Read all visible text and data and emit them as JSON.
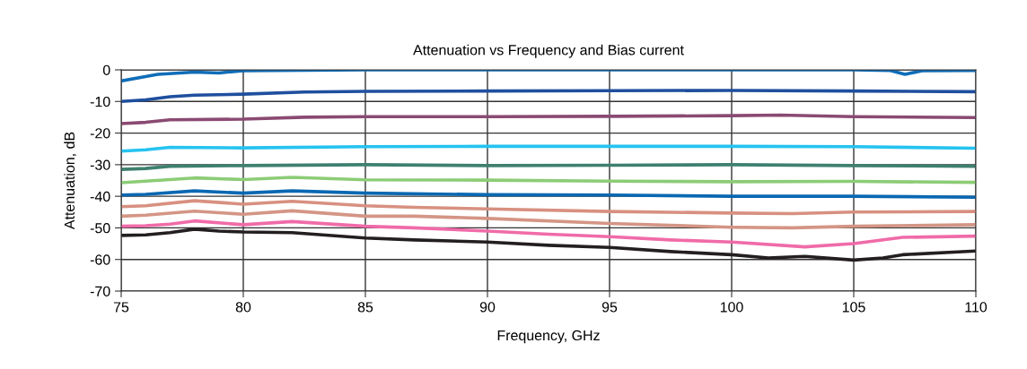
{
  "chart_data": {
    "type": "line",
    "title": "Attenuation vs Frequency and Bias current",
    "xlabel": "Frequency, GHz",
    "ylabel": "Attenuation, dB",
    "xlim": [
      75,
      110
    ],
    "xticks": [
      75,
      80,
      85,
      90,
      95,
      100,
      105,
      110
    ],
    "ylim": [
      -70,
      0
    ],
    "yticks": [
      -70,
      -60,
      -50,
      -40,
      -30,
      -20,
      -10,
      0
    ],
    "grid": true,
    "marker": "none",
    "line_style": "solid",
    "series": [
      {
        "color": "#0f6db8",
        "x": [
          75,
          76.5,
          78,
          79,
          79.5,
          80,
          85,
          90,
          95,
          100,
          105,
          106.5,
          107.1,
          107.8,
          110
        ],
        "values": [
          -3.5,
          -1.4,
          -0.7,
          -1,
          -0.6,
          -0.3,
          0,
          0,
          0,
          0,
          0,
          -0.2,
          -1.4,
          -0.3,
          -0.2
        ]
      },
      {
        "color": "#1f4f9e",
        "x": [
          75,
          76,
          77,
          78,
          80,
          82.5,
          85,
          90,
          95,
          100,
          105,
          110
        ],
        "values": [
          -10,
          -9.5,
          -8.5,
          -8,
          -7.7,
          -7,
          -6.8,
          -6.7,
          -6.6,
          -6.5,
          -6.7,
          -6.9
        ]
      },
      {
        "color": "#8a4a72",
        "x": [
          75,
          76,
          77,
          80,
          82.5,
          85,
          90,
          95,
          100,
          102,
          105,
          110
        ],
        "values": [
          -17,
          -16.6,
          -15.8,
          -15.6,
          -15,
          -14.8,
          -14.8,
          -14.7,
          -14.5,
          -14.3,
          -14.8,
          -15.1
        ]
      },
      {
        "color": "#25c3f0",
        "x": [
          75,
          76,
          77,
          80,
          85,
          90,
          95,
          100,
          105,
          110
        ],
        "values": [
          -25.7,
          -25.3,
          -24.5,
          -24.7,
          -24.3,
          -24.2,
          -24.2,
          -24.2,
          -24.3,
          -24.8
        ]
      },
      {
        "color": "#3e8070",
        "x": [
          75,
          76,
          77,
          80,
          85,
          90,
          95,
          100,
          105,
          110
        ],
        "values": [
          -31.5,
          -31.2,
          -30.5,
          -30.3,
          -30,
          -30.3,
          -30.2,
          -30,
          -30.3,
          -30.5
        ]
      },
      {
        "color": "#8ccc76",
        "x": [
          75,
          76,
          78,
          80,
          82,
          85,
          90,
          95,
          100,
          105,
          110
        ],
        "values": [
          -35.7,
          -35.2,
          -34.2,
          -34.7,
          -34,
          -34.8,
          -34.9,
          -35.2,
          -35.4,
          -35.3,
          -35.6
        ]
      },
      {
        "color": "#0a68b2",
        "x": [
          75,
          76,
          78,
          80,
          82,
          85,
          90,
          95,
          100,
          105,
          110
        ],
        "values": [
          -39.6,
          -39.4,
          -38.3,
          -39,
          -38.3,
          -39,
          -39.5,
          -39.6,
          -40,
          -40,
          -40.3
        ]
      },
      {
        "color": "#d89080",
        "x": [
          75,
          76,
          78,
          80,
          82,
          85,
          87,
          90,
          95,
          100,
          102.5,
          105,
          110
        ],
        "values": [
          -43.3,
          -43,
          -41.4,
          -42.5,
          -41.6,
          -43,
          -43.5,
          -44,
          -44.8,
          -45.3,
          -45.5,
          -45,
          -44.8
        ]
      },
      {
        "color": "#d49585",
        "x": [
          75,
          76,
          78,
          80,
          82,
          85,
          87,
          90,
          95,
          100,
          102.5,
          105,
          110
        ],
        "values": [
          -46.3,
          -46,
          -44.7,
          -45.7,
          -44.6,
          -46.3,
          -46.3,
          -47,
          -48.6,
          -49.8,
          -50,
          -49.5,
          -49
        ]
      },
      {
        "color": "#f06ba8",
        "x": [
          75,
          76,
          77,
          78,
          80,
          82,
          85,
          87,
          90,
          92.5,
          95,
          97.5,
          100,
          103,
          105,
          107,
          110
        ],
        "values": [
          -49.5,
          -49.3,
          -48.8,
          -47.8,
          -49,
          -48,
          -49.5,
          -50,
          -51,
          -52,
          -52.8,
          -53.8,
          -54.5,
          -56,
          -55,
          -53,
          -52.6
        ]
      },
      {
        "color": "#231f20",
        "x": [
          75,
          76,
          77,
          78,
          79,
          80,
          82,
          85,
          87,
          90,
          92.5,
          95,
          97.5,
          100,
          101.5,
          103,
          105,
          106.2,
          107,
          110
        ],
        "values": [
          -52.4,
          -52.2,
          -51.5,
          -50.4,
          -51,
          -51.3,
          -51.5,
          -53.2,
          -53.8,
          -54.5,
          -55.5,
          -56.2,
          -57.5,
          -58.5,
          -59.5,
          -59,
          -60.2,
          -59.5,
          -58.5,
          -57.3
        ]
      }
    ]
  }
}
